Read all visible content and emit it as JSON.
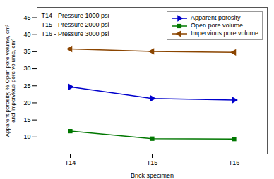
{
  "chart_data": {
    "type": "line",
    "categories": [
      "T14",
      "T15",
      "T16"
    ],
    "series": [
      {
        "name": "Apparent porosity",
        "color": "#0000CC",
        "marker": "triangle-right",
        "values": [
          24.7,
          21.3,
          20.8
        ]
      },
      {
        "name": "Open pore volume",
        "color": "#007700",
        "marker": "square",
        "values": [
          11.7,
          9.5,
          9.4
        ]
      },
      {
        "name": "Impervious pore volume",
        "color": "#8B4500",
        "marker": "triangle-left",
        "values": [
          35.8,
          35.1,
          34.8
        ]
      }
    ],
    "xlabel": "Brick specimen",
    "ylabel": "Apparent porosity, % Open pore volume, cm³\nand Impervious pore volume, cm³",
    "annotations": [
      "T14 - Pressure 1000 psi",
      "T15 - Pressure 2000 psi",
      "T16 - Pressure 3000 psi"
    ],
    "ylim": [
      5,
      48
    ],
    "yticks": [
      10,
      15,
      20,
      25,
      30,
      35,
      40,
      45
    ],
    "grid": false,
    "legend": "upper right"
  }
}
